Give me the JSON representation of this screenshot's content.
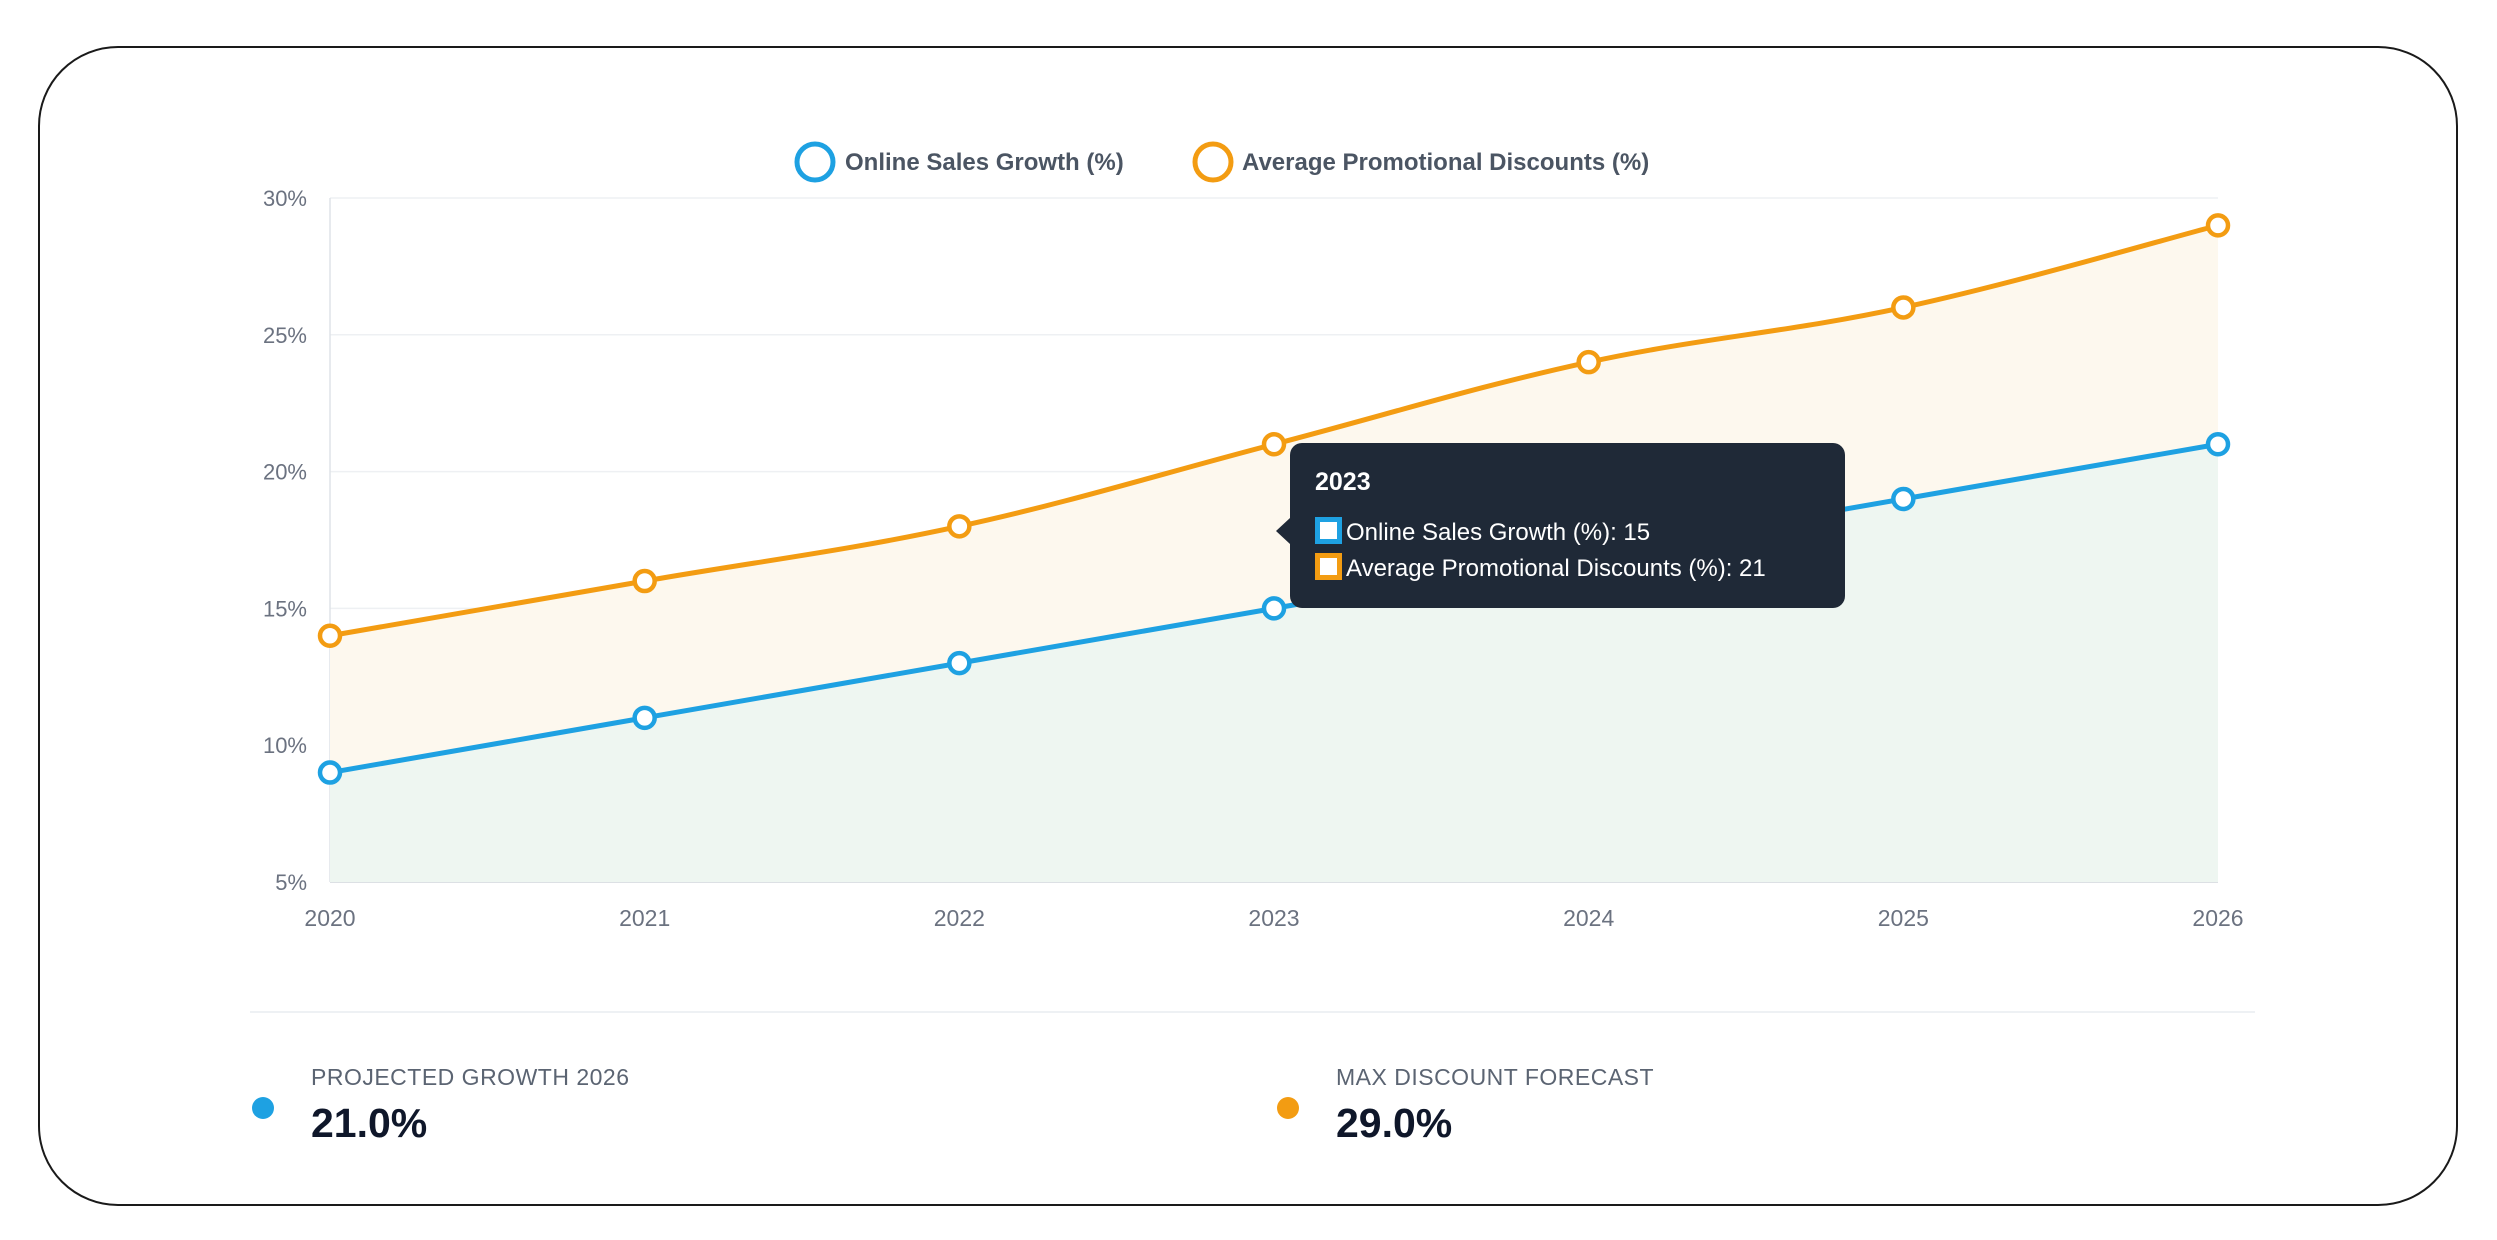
{
  "chart_data": {
    "type": "area",
    "categories": [
      "2020",
      "2021",
      "2022",
      "2023",
      "2024",
      "2025",
      "2026"
    ],
    "series": [
      {
        "name": "Online Sales Growth (%)",
        "values": [
          9,
          11,
          13,
          15,
          17,
          19,
          21
        ],
        "color": "#1ea1e2",
        "fill": "#eef6f1"
      },
      {
        "name": "Average Promotional Discounts (%)",
        "values": [
          14,
          16,
          18,
          21,
          24,
          26,
          29
        ],
        "color": "#f39c12",
        "fill": "#fdf8ee"
      }
    ],
    "ylim": [
      5,
      30
    ],
    "yticks": [
      5,
      10,
      15,
      20,
      25,
      30
    ],
    "ytick_labels": [
      "5%",
      "10%",
      "15%",
      "20%",
      "25%",
      "30%"
    ],
    "grid": true,
    "legend": "top-center",
    "title": "",
    "xlabel": "",
    "ylabel": ""
  },
  "tooltip": {
    "title": "2023",
    "rows": [
      "Online Sales Growth (%): 15",
      "Average Promotional Discounts (%): 21"
    ],
    "category_index": 3
  },
  "stats": {
    "growth": {
      "label": "PROJECTED GROWTH 2026",
      "value": "21.0%",
      "color": "#1ea1e2"
    },
    "discount": {
      "label": "MAX DISCOUNT FORECAST",
      "value": "29.0%",
      "color": "#f39c12"
    }
  }
}
